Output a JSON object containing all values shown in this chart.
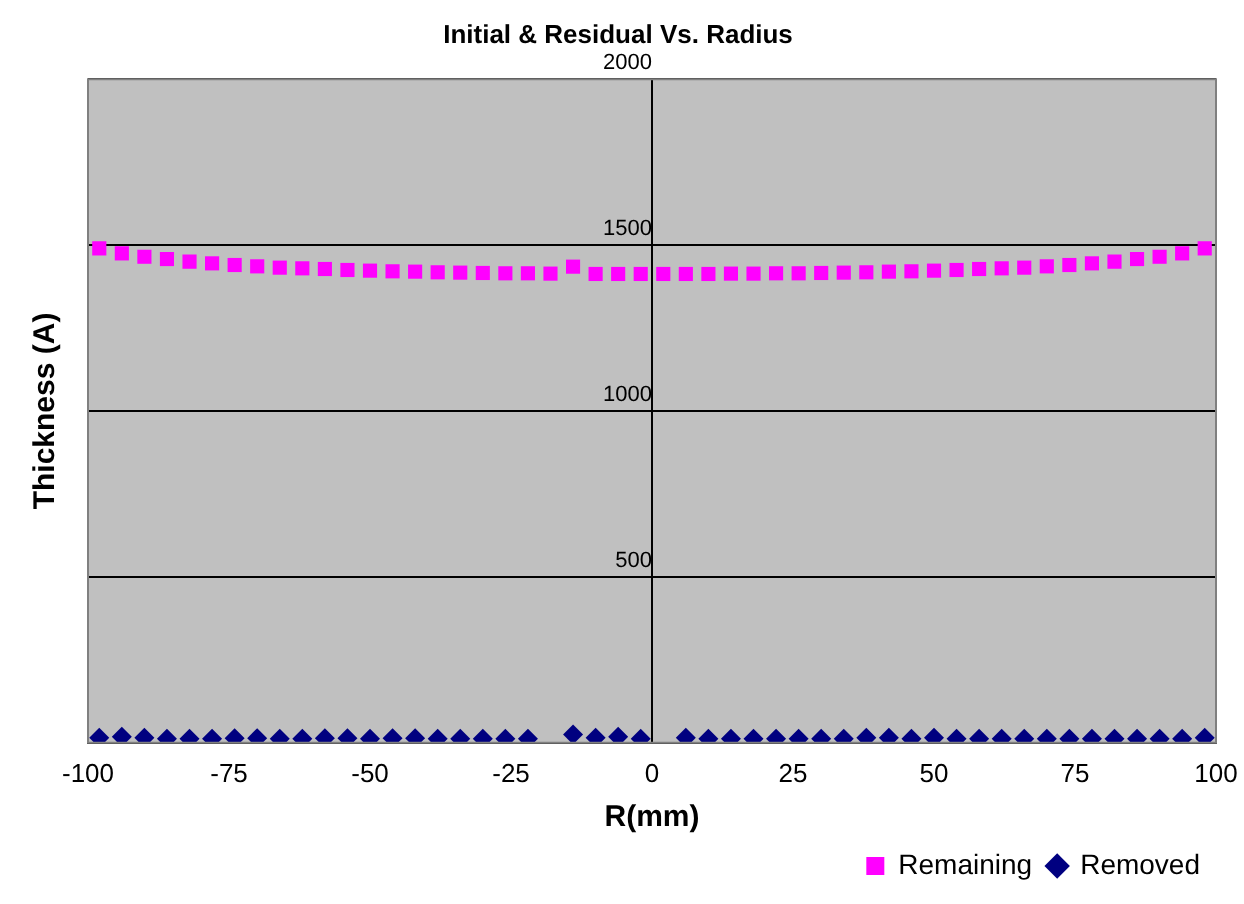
{
  "chart_data": {
    "type": "scatter",
    "title": "Initial & Residual Vs. Radius",
    "xlabel": "R(mm)",
    "ylabel": "Thickness (A)",
    "x": [
      -98,
      -94,
      -90,
      -86,
      -82,
      -78,
      -74,
      -70,
      -66,
      -62,
      -58,
      -54,
      -50,
      -46,
      -42,
      -38,
      -34,
      -30,
      -26,
      -22,
      -18,
      -14,
      -10,
      -6,
      -2,
      2,
      6,
      10,
      14,
      18,
      22,
      26,
      30,
      34,
      38,
      42,
      46,
      50,
      54,
      58,
      62,
      66,
      70,
      74,
      78,
      82,
      86,
      90,
      94,
      98
    ],
    "series": [
      {
        "name": "Remaining",
        "color": "#ff00ff",
        "marker": "square",
        "values": [
          1490,
          1475,
          1465,
          1458,
          1450,
          1445,
          1440,
          1436,
          1432,
          1430,
          1428,
          1425,
          1423,
          1421,
          1420,
          1418,
          1417,
          1416,
          1415,
          1415,
          1414,
          1435,
          1413,
          1413,
          1413,
          1413,
          1413,
          1413,
          1414,
          1414,
          1415,
          1415,
          1416,
          1417,
          1418,
          1420,
          1421,
          1423,
          1425,
          1428,
          1430,
          1432,
          1436,
          1440,
          1445,
          1450,
          1458,
          1465,
          1475,
          1490
        ]
      },
      {
        "name": "Removed",
        "color": "#000080",
        "marker": "diamond",
        "values": [
          15,
          18,
          15,
          12,
          12,
          12,
          14,
          14,
          12,
          12,
          14,
          14,
          12,
          14,
          14,
          12,
          12,
          12,
          12,
          12,
          null,
          25,
          15,
          18,
          12,
          null,
          15,
          12,
          12,
          12,
          12,
          12,
          12,
          12,
          15,
          15,
          12,
          15,
          12,
          12,
          12,
          12,
          12,
          12,
          12,
          12,
          12,
          12,
          12,
          15
        ]
      }
    ],
    "xlim": [
      -100,
      100
    ],
    "xticks": [
      -100,
      -75,
      -50,
      -25,
      0,
      25,
      50,
      75,
      100
    ],
    "ylim": [
      0,
      2000
    ],
    "yticks": [
      {
        "value": 0,
        "label": null
      },
      500,
      1000,
      1500,
      2000
    ],
    "grid": "y",
    "legend": "bottom right"
  }
}
